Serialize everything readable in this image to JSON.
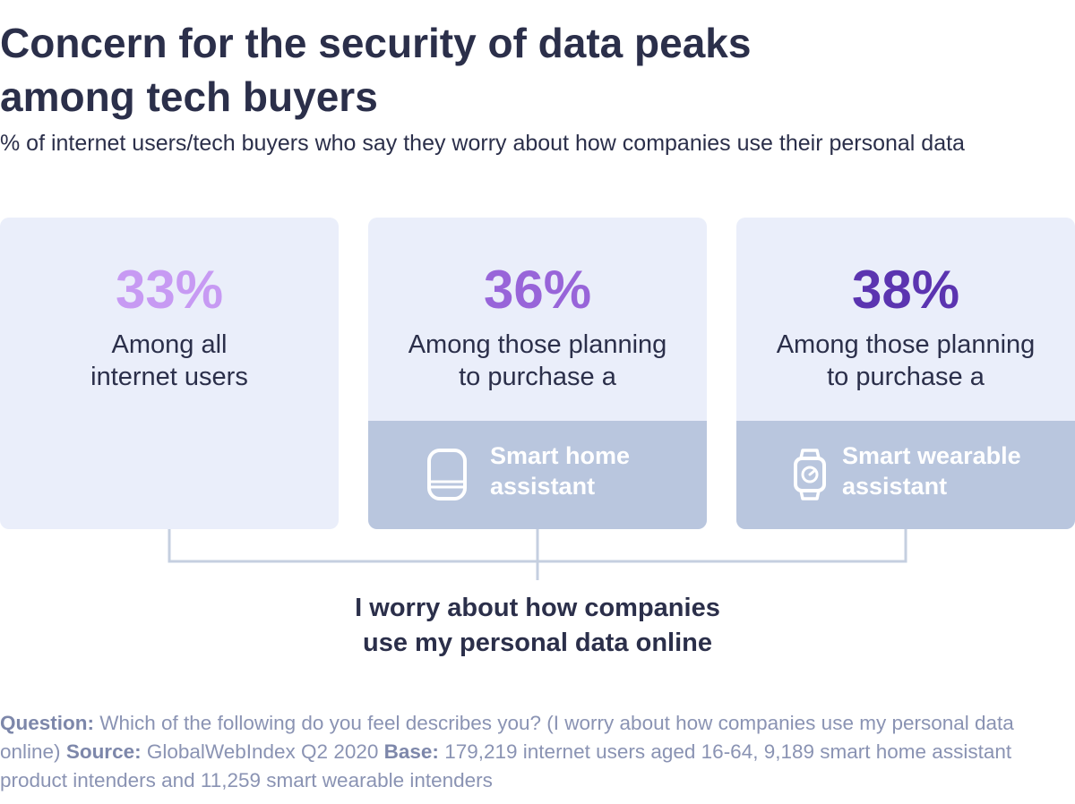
{
  "chart_data": {
    "type": "table",
    "title": "Concern for the security of data peaks among tech buyers",
    "subtitle": "% of internet users/tech buyers who say they worry about how companies use their personal data",
    "categories": [
      "Among all internet users",
      "Among those planning to purchase a Smart home assistant",
      "Among those planning to purchase a Smart wearable assistant"
    ],
    "values": [
      33,
      36,
      38
    ],
    "unit": "%",
    "statement": "I worry about how companies use my personal data online"
  },
  "cards": [
    {
      "value_label": "33%",
      "desc_lines": [
        "Among all",
        "internet users"
      ],
      "color": "#c79af3"
    },
    {
      "value_label": "36%",
      "desc_lines": [
        "Among those planning",
        "to purchase a"
      ],
      "product_lines": [
        "Smart home",
        "assistant"
      ],
      "icon": "smart-speaker-icon",
      "color": "#9865d9"
    },
    {
      "value_label": "38%",
      "desc_lines": [
        "Among those planning",
        "to purchase a"
      ],
      "product_lines": [
        "Smart wearable",
        "assistant"
      ],
      "icon": "smartwatch-icon",
      "color": "#5b34b0"
    }
  ],
  "statement_lines": [
    "I worry about how companies",
    "use my personal data online"
  ],
  "footnote": {
    "question_label": "Question:",
    "question_text": "Which of the following do you feel describes you? (I worry about how companies use my personal data online)",
    "source_label": "Source:",
    "source_text": "GlobalWebIndex Q2 2020",
    "base_label": "Base:",
    "base_text": "179,219 internet users aged 16-64, 9,189 smart home assistant product intenders and 11,259 smart wearable intenders"
  },
  "colors": {
    "card_bg": "#eaeefa",
    "band_bg": "#b9c6de",
    "connector": "#c5cfe0",
    "text": "#2b2f4a",
    "footnote": "#8a93b3"
  }
}
